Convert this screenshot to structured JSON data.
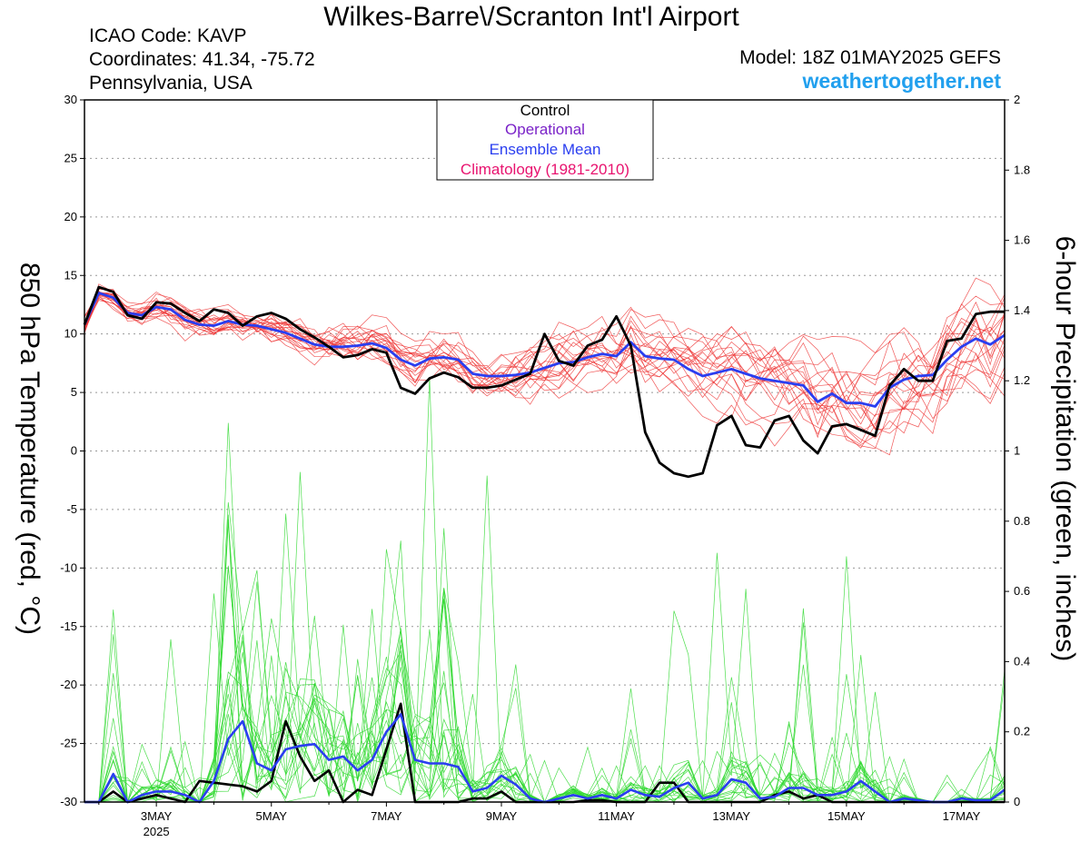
{
  "header": {
    "title": "Wilkes-Barre\\/Scranton Int'l Airport",
    "icao": "ICAO Code: KAVP",
    "coords": "Coordinates: 41.34, -75.72",
    "region": "Pennsylvania, USA",
    "model": "Model: 18Z 01MAY2025 GEFS",
    "site": "weathertogether.net"
  },
  "colors": {
    "control": "#000000",
    "operational": "#7a22c8",
    "ensemble_mean": "#2a3ef0",
    "climatology": "#e8136f",
    "temp_members": "#ee3030",
    "precip_members": "#2ed82e",
    "site": "#22a0ee"
  },
  "chart_data": {
    "type": "line",
    "xlabel": "",
    "x_ticks": [
      "3MAY",
      "5MAY",
      "7MAY",
      "9MAY",
      "11MAY",
      "13MAY",
      "15MAY",
      "17MAY"
    ],
    "x_tick_days": [
      3,
      5,
      7,
      9,
      11,
      13,
      15,
      17
    ],
    "x_sublabel": "2025",
    "xlim_days": [
      1.75,
      17.75
    ],
    "y_left": {
      "label": "850 hPa Temperature (red, °C)",
      "lim": [
        -30,
        30
      ],
      "ticks": [
        30,
        25,
        20,
        15,
        10,
        5,
        0,
        -5,
        -10,
        -15,
        -20,
        -25,
        -30
      ]
    },
    "y_right": {
      "label": "6-hour Precipitation (green, inches)",
      "lim": [
        0,
        2
      ],
      "ticks": [
        2,
        1.8,
        1.6,
        1.4,
        1.2,
        1,
        0.8,
        0.6,
        0.4,
        0.2,
        0
      ]
    },
    "grid": "horizontal dotted",
    "legend": {
      "placement": "top-center",
      "entries": [
        "Control",
        "Operational",
        "Ensemble Mean",
        "Climatology (1981-2010)"
      ]
    },
    "time_step_hours": 6,
    "start_day": 1.75,
    "series": [
      {
        "name": "Control",
        "axis": "left",
        "values": [
          10.8,
          14.0,
          13.6,
          11.6,
          11.3,
          12.7,
          12.6,
          11.8,
          11.1,
          12.1,
          11.8,
          10.7,
          11.5,
          11.8,
          11.3,
          10.4,
          9.7,
          8.9,
          8.0,
          8.2,
          8.7,
          8.4,
          5.4,
          4.9,
          6.2,
          6.7,
          6.3,
          5.4,
          5.4,
          5.6,
          6.1,
          6.6,
          10.0,
          7.7,
          7.3,
          9.0,
          9.5,
          11.5,
          9.0,
          1.6,
          -1.0,
          -1.9,
          -2.2,
          -1.9,
          2.2,
          3.0,
          0.5,
          0.3,
          2.6,
          3.0,
          0.9,
          -0.2,
          2.1,
          2.3,
          1.8,
          1.3,
          5.6,
          7.0,
          6.0,
          6.0,
          9.4,
          9.6,
          11.7,
          11.9,
          11.9
        ]
      },
      {
        "name": "Ensemble Mean",
        "axis": "left",
        "values": [
          10.8,
          13.5,
          13.1,
          11.8,
          11.6,
          12.3,
          12.1,
          11.2,
          10.8,
          10.7,
          11.1,
          10.8,
          10.7,
          10.4,
          10.1,
          9.6,
          9.1,
          8.9,
          8.9,
          9.0,
          9.2,
          8.8,
          7.8,
          7.3,
          7.9,
          8.0,
          7.8,
          6.6,
          6.4,
          6.4,
          6.5,
          6.7,
          7.1,
          7.5,
          7.6,
          8.0,
          8.3,
          8.1,
          9.3,
          8.1,
          7.9,
          7.8,
          7.0,
          6.4,
          6.7,
          7.0,
          6.6,
          6.2,
          6.0,
          5.8,
          5.6,
          4.2,
          4.9,
          4.1,
          4.1,
          3.8,
          5.4,
          6.1,
          6.4,
          6.5,
          7.8,
          8.9,
          9.6,
          9.1,
          9.9
        ]
      },
      {
        "name": "Control precipitation",
        "axis": "right",
        "values": [
          0,
          0,
          0.03,
          0,
          0.01,
          0.02,
          0.01,
          0,
          0.06,
          0.055,
          0.05,
          0.045,
          0.03,
          0.06,
          0.23,
          0.13,
          0.06,
          0.09,
          0,
          0.035,
          0.02,
          0.15,
          0.28,
          0,
          0,
          0,
          0,
          0.01,
          0.01,
          0.03,
          0,
          0,
          0,
          0,
          0,
          0.005,
          0.005,
          0,
          0,
          0,
          0.055,
          0.055,
          0,
          0,
          0,
          0,
          0,
          0,
          0.02,
          0.03,
          0.01,
          0.02,
          0,
          0,
          0,
          0,
          0,
          0,
          0,
          0,
          0,
          0,
          0,
          0,
          0
        ]
      },
      {
        "name": "Ensemble mean precipitation",
        "axis": "right",
        "values": [
          0,
          0,
          0.08,
          0,
          0.02,
          0.03,
          0.03,
          0.02,
          0,
          0.06,
          0.18,
          0.23,
          0.11,
          0.09,
          0.15,
          0.16,
          0.165,
          0.12,
          0.13,
          0.09,
          0.12,
          0.2,
          0.25,
          0.12,
          0.11,
          0.11,
          0.1,
          0.03,
          0.04,
          0.075,
          0.05,
          0.01,
          0,
          0.01,
          0.02,
          0.01,
          0.02,
          0.01,
          0.035,
          0.02,
          0.015,
          0.04,
          0.055,
          0.01,
          0.02,
          0.065,
          0.055,
          0.01,
          0.015,
          0.04,
          0.04,
          0.02,
          0.02,
          0.03,
          0.06,
          0.03,
          0,
          0.01,
          0.005,
          0,
          0,
          0.01,
          0.005,
          0.005,
          0.035
        ]
      }
    ],
    "members": {
      "count": 20,
      "temperature_range": [
        -5,
        16
      ],
      "precipitation_peaks": [
        {
          "day": 4.25,
          "value": 1.08
        },
        {
          "day": 4.75,
          "value": 0.66
        },
        {
          "day": 5.5,
          "value": 0.94
        },
        {
          "day": 6.75,
          "value": 0.55
        },
        {
          "day": 7.0,
          "value": 0.72
        },
        {
          "day": 7.75,
          "value": 1.21
        },
        {
          "day": 8.0,
          "value": 0.78
        },
        {
          "day": 8.75,
          "value": 0.93
        },
        {
          "day": 12.75,
          "value": 0.71
        },
        {
          "day": 15.0,
          "value": 0.7
        }
      ]
    }
  }
}
